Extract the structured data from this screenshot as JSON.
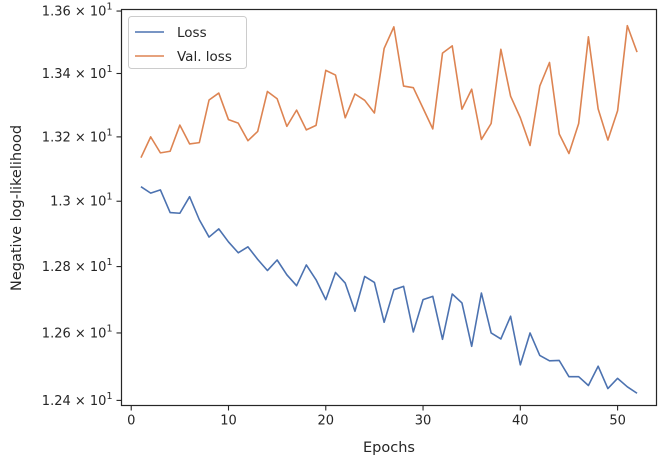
{
  "chart_data": {
    "type": "line",
    "xlabel": "Epochs",
    "ylabel": "Negative log-likelihood",
    "xlim": [
      -1,
      54
    ],
    "ylim": [
      12.385,
      13.605
    ],
    "y_scale": "log",
    "grid": false,
    "legend_position": "top-left",
    "x_ticks": [
      0,
      10,
      20,
      30,
      40,
      50
    ],
    "x_tick_labels": [
      "0",
      "10",
      "20",
      "30",
      "40",
      "50"
    ],
    "y_ticks": [
      12.4,
      12.6,
      12.8,
      13.0,
      13.2,
      13.4,
      13.6
    ],
    "y_tick_labels": [
      {
        "mantissa": "1.24",
        "exp": "1"
      },
      {
        "mantissa": "1.26",
        "exp": "1"
      },
      {
        "mantissa": "1.28",
        "exp": "1"
      },
      {
        "mantissa": "1.3",
        "exp": "1"
      },
      {
        "mantissa": "1.32",
        "exp": "1"
      },
      {
        "mantissa": "1.34",
        "exp": "1"
      },
      {
        "mantissa": "1.36",
        "exp": "1"
      }
    ],
    "x": [
      1,
      2,
      3,
      4,
      5,
      6,
      7,
      8,
      9,
      10,
      11,
      12,
      13,
      14,
      15,
      16,
      17,
      18,
      19,
      20,
      21,
      22,
      23,
      24,
      25,
      26,
      27,
      28,
      29,
      30,
      31,
      32,
      33,
      34,
      35,
      36,
      37,
      38,
      39,
      40,
      41,
      42,
      43,
      44,
      45,
      46,
      47,
      48,
      49,
      50,
      51,
      52
    ],
    "series": [
      {
        "name": "Loss",
        "color": "#4c72b0",
        "values": [
          13.045,
          13.025,
          13.035,
          12.965,
          12.963,
          13.014,
          12.943,
          12.89,
          12.915,
          12.875,
          12.842,
          12.86,
          12.822,
          12.788,
          12.82,
          12.775,
          12.742,
          12.805,
          12.76,
          12.7,
          12.782,
          12.75,
          12.665,
          12.77,
          12.752,
          12.632,
          12.73,
          12.74,
          12.603,
          12.7,
          12.71,
          12.581,
          12.717,
          12.69,
          12.56,
          12.72,
          12.6,
          12.582,
          12.65,
          12.505,
          12.6,
          12.533,
          12.517,
          12.518,
          12.47,
          12.47,
          12.444,
          12.501,
          12.435,
          12.465,
          12.44,
          12.421
        ]
      },
      {
        "name": "Val. loss",
        "color": "#dd8452",
        "values": [
          13.135,
          13.2,
          13.15,
          13.155,
          13.237,
          13.178,
          13.182,
          13.316,
          13.338,
          13.254,
          13.243,
          13.188,
          13.217,
          13.343,
          13.32,
          13.233,
          13.284,
          13.222,
          13.236,
          13.41,
          13.395,
          13.26,
          13.335,
          13.315,
          13.275,
          13.48,
          13.549,
          13.36,
          13.355,
          13.29,
          13.225,
          13.465,
          13.488,
          13.287,
          13.35,
          13.192,
          13.242,
          13.477,
          13.328,
          13.26,
          13.173,
          13.36,
          13.435,
          13.209,
          13.148,
          13.242,
          13.517,
          13.288,
          13.19,
          13.282,
          13.553,
          13.468
        ]
      }
    ]
  }
}
